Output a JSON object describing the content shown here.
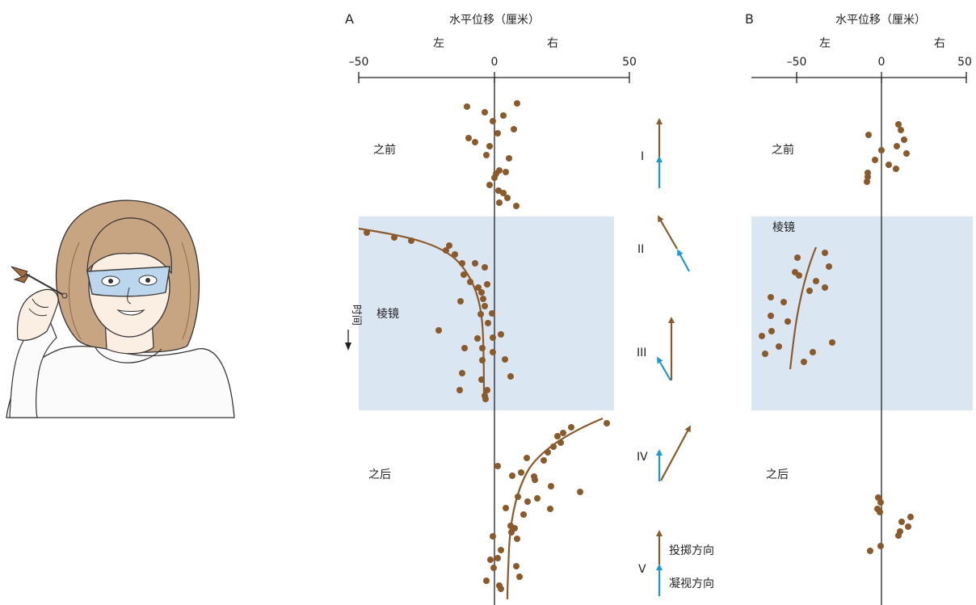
{
  "panel_a": {
    "letter": "A",
    "axis_title": "水平位移（厘米）",
    "left_word": "左",
    "right_word": "右",
    "ticks": [
      "–50",
      "0",
      "50"
    ],
    "phase_before": "之前",
    "phase_prism": "棱镜",
    "phase_after": "之后",
    "time_label": "时间"
  },
  "panel_b": {
    "letter": "B",
    "axis_title": "水平位移（厘米）",
    "left_word": "左",
    "right_word": "右",
    "ticks": [
      "–50",
      "0",
      "50"
    ],
    "phase_before": "之前",
    "phase_prism": "棱镜",
    "phase_after": "之后"
  },
  "arrows": {
    "labels": [
      "I",
      "II",
      "III",
      "IV",
      "V"
    ],
    "legend_throw": "投掷方向",
    "legend_gaze": "凝视方向"
  },
  "colors": {
    "throw": "#8b5a2b",
    "gaze": "#1a9ad6",
    "prism_band": "#dbe6f3"
  }
}
